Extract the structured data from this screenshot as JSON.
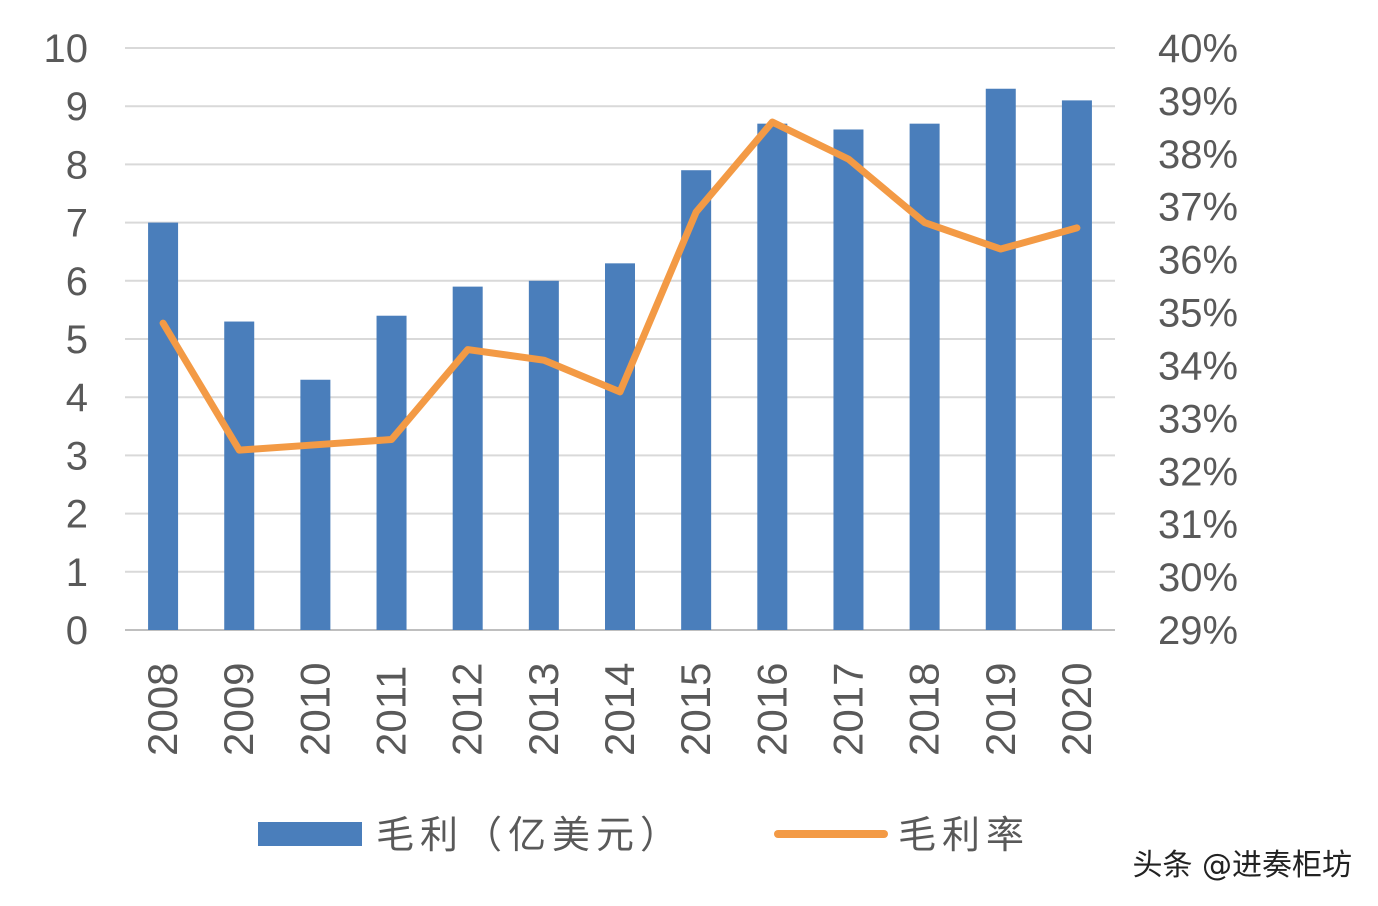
{
  "chart_data": {
    "type": "bar+line",
    "categories": [
      "2008",
      "2009",
      "2010",
      "2011",
      "2012",
      "2013",
      "2014",
      "2015",
      "2016",
      "2017",
      "2018",
      "2019",
      "2020"
    ],
    "series": [
      {
        "name": "毛利（亿美元）",
        "type": "bar",
        "axis": "left",
        "color": "#4a7ebb",
        "values": [
          7.0,
          5.3,
          4.3,
          5.4,
          5.9,
          6.0,
          6.3,
          7.9,
          8.7,
          8.6,
          8.7,
          9.3,
          9.1
        ]
      },
      {
        "name": "毛利率",
        "type": "line",
        "axis": "right",
        "color": "#f39a45",
        "values": [
          34.8,
          32.4,
          32.5,
          32.6,
          34.3,
          34.1,
          33.5,
          36.9,
          38.6,
          37.9,
          36.7,
          36.2,
          36.6
        ]
      }
    ],
    "left_axis": {
      "ylim": [
        0,
        10
      ],
      "ticks": [
        "0",
        "1",
        "2",
        "3",
        "4",
        "5",
        "6",
        "7",
        "8",
        "9",
        "10"
      ]
    },
    "right_axis": {
      "ylim": [
        29,
        40
      ],
      "ticks": [
        "29%",
        "30%",
        "31%",
        "32%",
        "33%",
        "34%",
        "35%",
        "36%",
        "37%",
        "38%",
        "39%",
        "40%"
      ]
    },
    "grid": true,
    "legend_placement": "bottom"
  },
  "watermark": "头条 @进奏柜坊"
}
